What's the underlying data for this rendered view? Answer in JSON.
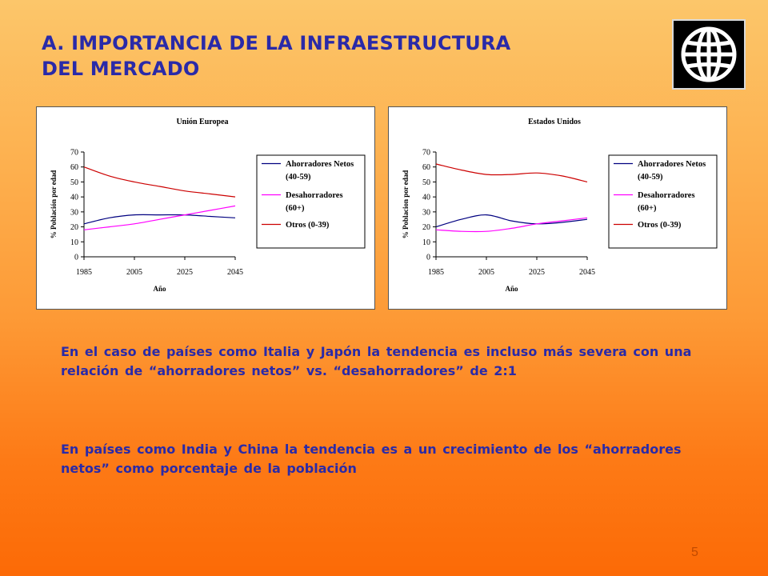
{
  "slide": {
    "title_line1": "A.  IMPORTANCIA DE LA INFRAESTRUCTURA",
    "title_line2": "DEL MERCADO",
    "logo_icon": "globe-grid-icon",
    "paragraph1": "En el caso de países como Italia y Japón la tendencia es incluso más severa con una relación de “ahorradores netos” vs. “desahorradores” de 2:1",
    "paragraph2": "En países como India y China la tendencia es a un crecimiento de los “ahorradores netos” como porcentaje de la población",
    "page_number": "5"
  },
  "colors": {
    "title_text": "#2a2aa8",
    "series_ahorradores": "#000080",
    "series_desahorradores": "#ff00ff",
    "series_otros": "#cc0000"
  },
  "chart_data": [
    {
      "type": "line",
      "title": "Unión Europea",
      "xlabel": "Año",
      "ylabel": "% Población por edad",
      "x": [
        1985,
        1995,
        2005,
        2015,
        2025,
        2035,
        2045
      ],
      "x_ticks": [
        "1985",
        "2005",
        "2025",
        "2045"
      ],
      "y_ticks": [
        "0",
        "10",
        "20",
        "30",
        "40",
        "50",
        "60",
        "70"
      ],
      "ylim": [
        0,
        70
      ],
      "legend_position": "right",
      "grid": false,
      "series": [
        {
          "name": "Ahorradores Netos",
          "name_line2": "(40-59)",
          "values": [
            22,
            26,
            28,
            28,
            28,
            27,
            26
          ]
        },
        {
          "name": "Desahorradores",
          "name_line2": "(60+)",
          "values": [
            18,
            20,
            22,
            25,
            28,
            31,
            34
          ]
        },
        {
          "name": "Otros (0-39)",
          "name_line2": "",
          "values": [
            60,
            54,
            50,
            47,
            44,
            42,
            40
          ]
        }
      ]
    },
    {
      "type": "line",
      "title": "Estados Unidos",
      "xlabel": "Año",
      "ylabel": "% Poblacion por edad",
      "x": [
        1985,
        1995,
        2005,
        2015,
        2025,
        2035,
        2045
      ],
      "x_ticks": [
        "1985",
        "2005",
        "2025",
        "2045"
      ],
      "y_ticks": [
        "0",
        "10",
        "20",
        "30",
        "40",
        "50",
        "60",
        "70"
      ],
      "ylim": [
        0,
        70
      ],
      "legend_position": "right",
      "grid": false,
      "series": [
        {
          "name": "Ahorradores Netos",
          "name_line2": "(40-59)",
          "values": [
            20,
            25,
            28,
            24,
            22,
            23,
            25
          ]
        },
        {
          "name": "Desahorradores",
          "name_line2": "(60+)",
          "values": [
            18,
            17,
            17,
            19,
            22,
            24,
            26
          ]
        },
        {
          "name": "Otros (0-39)",
          "name_line2": "",
          "values": [
            62,
            58,
            55,
            55,
            56,
            54,
            50
          ]
        }
      ]
    }
  ]
}
